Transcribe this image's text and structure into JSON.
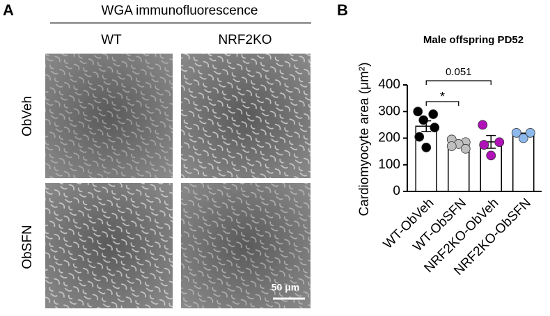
{
  "panel_a": {
    "label": "A",
    "title": "WGA immunofluorescence",
    "columns": [
      "WT",
      "NRF2KO"
    ],
    "rows": [
      "ObVeh",
      "ObSFN"
    ],
    "scale_bar": "50 μm"
  },
  "chart_data": {
    "type": "bar",
    "panel_label": "B",
    "title": "Male offspring PD52",
    "y_label": "Cardiomyocyte area (μm²)",
    "categories": [
      "WT-ObVeh",
      "WT-ObSFN",
      "NRF2KO-ObVeh",
      "NRF2KO-ObSFN"
    ],
    "values": [
      245,
      178,
      186,
      212
    ],
    "errors": [
      20,
      7,
      24,
      7
    ],
    "points": [
      [
        300,
        290,
        268,
        240,
        205,
        165
      ],
      [
        195,
        185,
        178,
        170,
        160
      ],
      [
        250,
        185,
        175,
        135
      ],
      [
        220,
        220,
        200
      ]
    ],
    "point_colors": [
      "#000000",
      "#c0c0c0",
      "#b012b8",
      "#8cb8ec"
    ],
    "ylim": [
      0,
      400
    ],
    "yticks": [
      0,
      100,
      200,
      300,
      400
    ],
    "annotations": [
      "0.051",
      "*"
    ]
  }
}
